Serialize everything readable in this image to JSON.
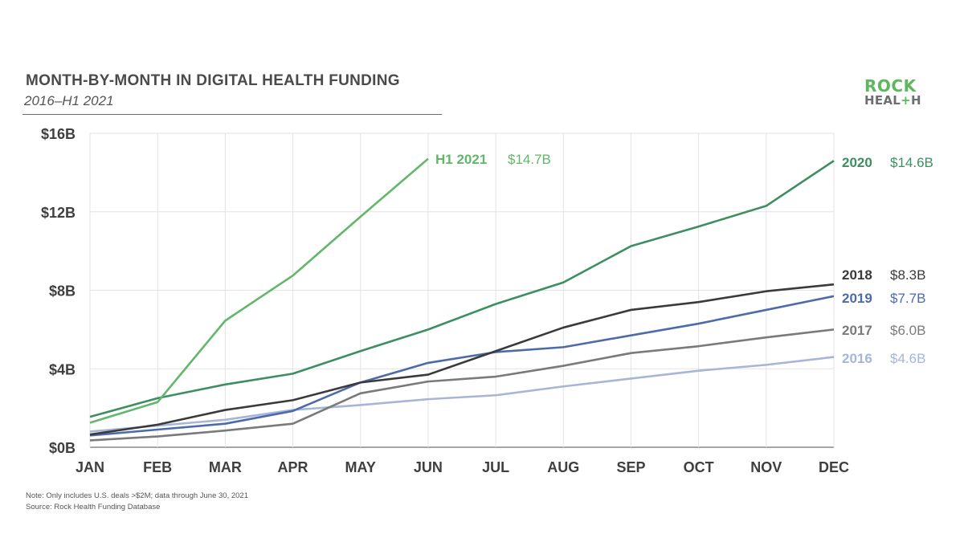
{
  "header": {
    "title": "MONTH-BY-MONTH IN DIGITAL HEALTH FUNDING",
    "subtitle": "2016–H1 2021"
  },
  "logo": {
    "line1": "ROCK",
    "line2_a": "HEAL",
    "line2_plus": "+",
    "line2_b": "H"
  },
  "footer": {
    "note": "Note: Only includes U.S. deals >$2M; data through June 30, 2021",
    "source": "Source: Rock Health Funding Database"
  },
  "chart_data": {
    "type": "line",
    "title": "MONTH-BY-MONTH IN DIGITAL HEALTH FUNDING",
    "subtitle": "2016–H1 2021",
    "xlabel": "",
    "ylabel": "",
    "categories": [
      "JAN",
      "FEB",
      "MAR",
      "APR",
      "MAY",
      "JUN",
      "JUL",
      "AUG",
      "SEP",
      "OCT",
      "NOV",
      "DEC"
    ],
    "yticks": [
      0,
      4,
      8,
      12,
      16
    ],
    "ytick_labels": [
      "$0B",
      "$4B",
      "$8B",
      "$12B",
      "$16B"
    ],
    "ylim": [
      0,
      16
    ],
    "grid": true,
    "legend": "end-of-line labels",
    "series": [
      {
        "name": "2016",
        "label_value": "$4.6B",
        "color": "#a6b6d6",
        "values": [
          0.8,
          1.1,
          1.4,
          1.9,
          2.15,
          2.45,
          2.65,
          3.1,
          3.5,
          3.9,
          4.2,
          4.6
        ]
      },
      {
        "name": "2017",
        "label_value": "$6.0B",
        "color": "#7a7a7a",
        "values": [
          0.35,
          0.55,
          0.85,
          1.2,
          2.75,
          3.35,
          3.6,
          4.15,
          4.8,
          5.15,
          5.6,
          6.0
        ]
      },
      {
        "name": "2018",
        "label_value": "$8.3B",
        "color": "#3a3a3a",
        "values": [
          0.65,
          1.15,
          1.9,
          2.4,
          3.3,
          3.7,
          4.9,
          6.1,
          7.0,
          7.4,
          7.95,
          8.3
        ]
      },
      {
        "name": "2019",
        "label_value": "$7.7B",
        "color": "#4d6aaa",
        "values": [
          0.6,
          0.9,
          1.2,
          1.85,
          3.3,
          4.3,
          4.85,
          5.1,
          5.7,
          6.3,
          7.0,
          7.7
        ]
      },
      {
        "name": "2020",
        "label_value": "$14.6B",
        "color": "#3d8f62",
        "values": [
          1.55,
          2.5,
          3.2,
          3.75,
          4.9,
          6.0,
          7.3,
          8.4,
          10.25,
          11.25,
          12.3,
          14.6
        ]
      },
      {
        "name": "H1 2021",
        "label_value": "$14.7B",
        "color": "#62b76a",
        "values": [
          1.25,
          2.3,
          6.45,
          8.75,
          11.75,
          14.7
        ]
      }
    ]
  }
}
